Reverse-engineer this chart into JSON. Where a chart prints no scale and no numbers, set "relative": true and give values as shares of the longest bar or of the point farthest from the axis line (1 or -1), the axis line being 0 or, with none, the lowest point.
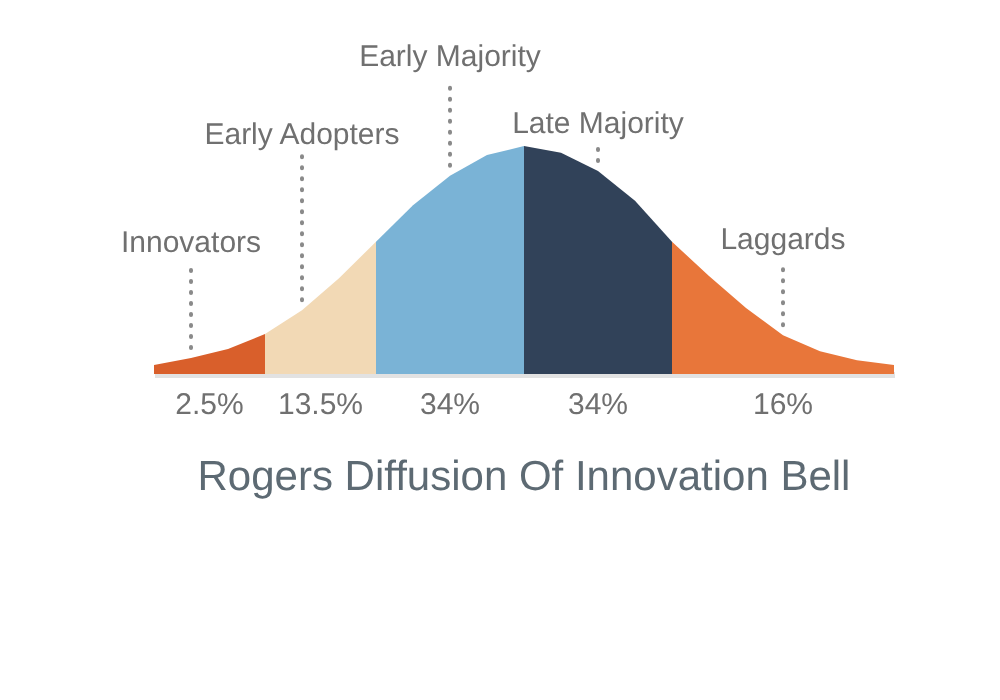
{
  "chart_data": {
    "type": "area",
    "title": "Rogers Diffusion Of Innovation Bell",
    "relative": true,
    "categories": [
      null,
      null,
      null,
      null,
      null,
      null,
      null,
      null,
      null,
      null,
      null,
      null,
      null,
      null,
      null,
      null,
      null,
      null,
      null,
      null,
      null
    ],
    "series": [
      {
        "name": "Innovators",
        "color": "#d95f2b",
        "values": [
          0.04,
          0.07,
          0.11,
          0.175,
          null,
          null,
          null,
          null,
          null,
          null,
          null,
          null,
          null,
          null,
          null,
          null,
          null,
          null,
          null,
          null,
          null
        ]
      },
      {
        "name": "Early Adopters",
        "color": "#f2d9b5",
        "values": [
          null,
          null,
          null,
          0.175,
          0.28,
          0.42,
          0.58,
          null,
          null,
          null,
          null,
          null,
          null,
          null,
          null,
          null,
          null,
          null,
          null,
          null,
          null
        ]
      },
      {
        "name": "Early Majority",
        "color": "#7ab3d6",
        "values": [
          null,
          null,
          null,
          null,
          null,
          null,
          0.58,
          0.74,
          0.87,
          0.96,
          1,
          null,
          null,
          null,
          null,
          null,
          null,
          null,
          null,
          null,
          null
        ]
      },
      {
        "name": "Late Majority",
        "color": "#314259",
        "values": [
          null,
          null,
          null,
          null,
          null,
          null,
          null,
          null,
          null,
          null,
          1,
          0.97,
          0.89,
          0.76,
          0.58,
          null,
          null,
          null,
          null,
          null,
          null
        ]
      },
      {
        "name": "Laggards",
        "color": "#e8763a",
        "values": [
          null,
          null,
          null,
          null,
          null,
          null,
          null,
          null,
          null,
          null,
          null,
          null,
          null,
          null,
          0.58,
          0.43,
          0.29,
          0.17,
          0.1,
          0.06,
          0.04
        ]
      }
    ],
    "annotations": [
      "2.5%",
      "13.5%",
      "34%",
      "34%",
      "16%"
    ]
  }
}
